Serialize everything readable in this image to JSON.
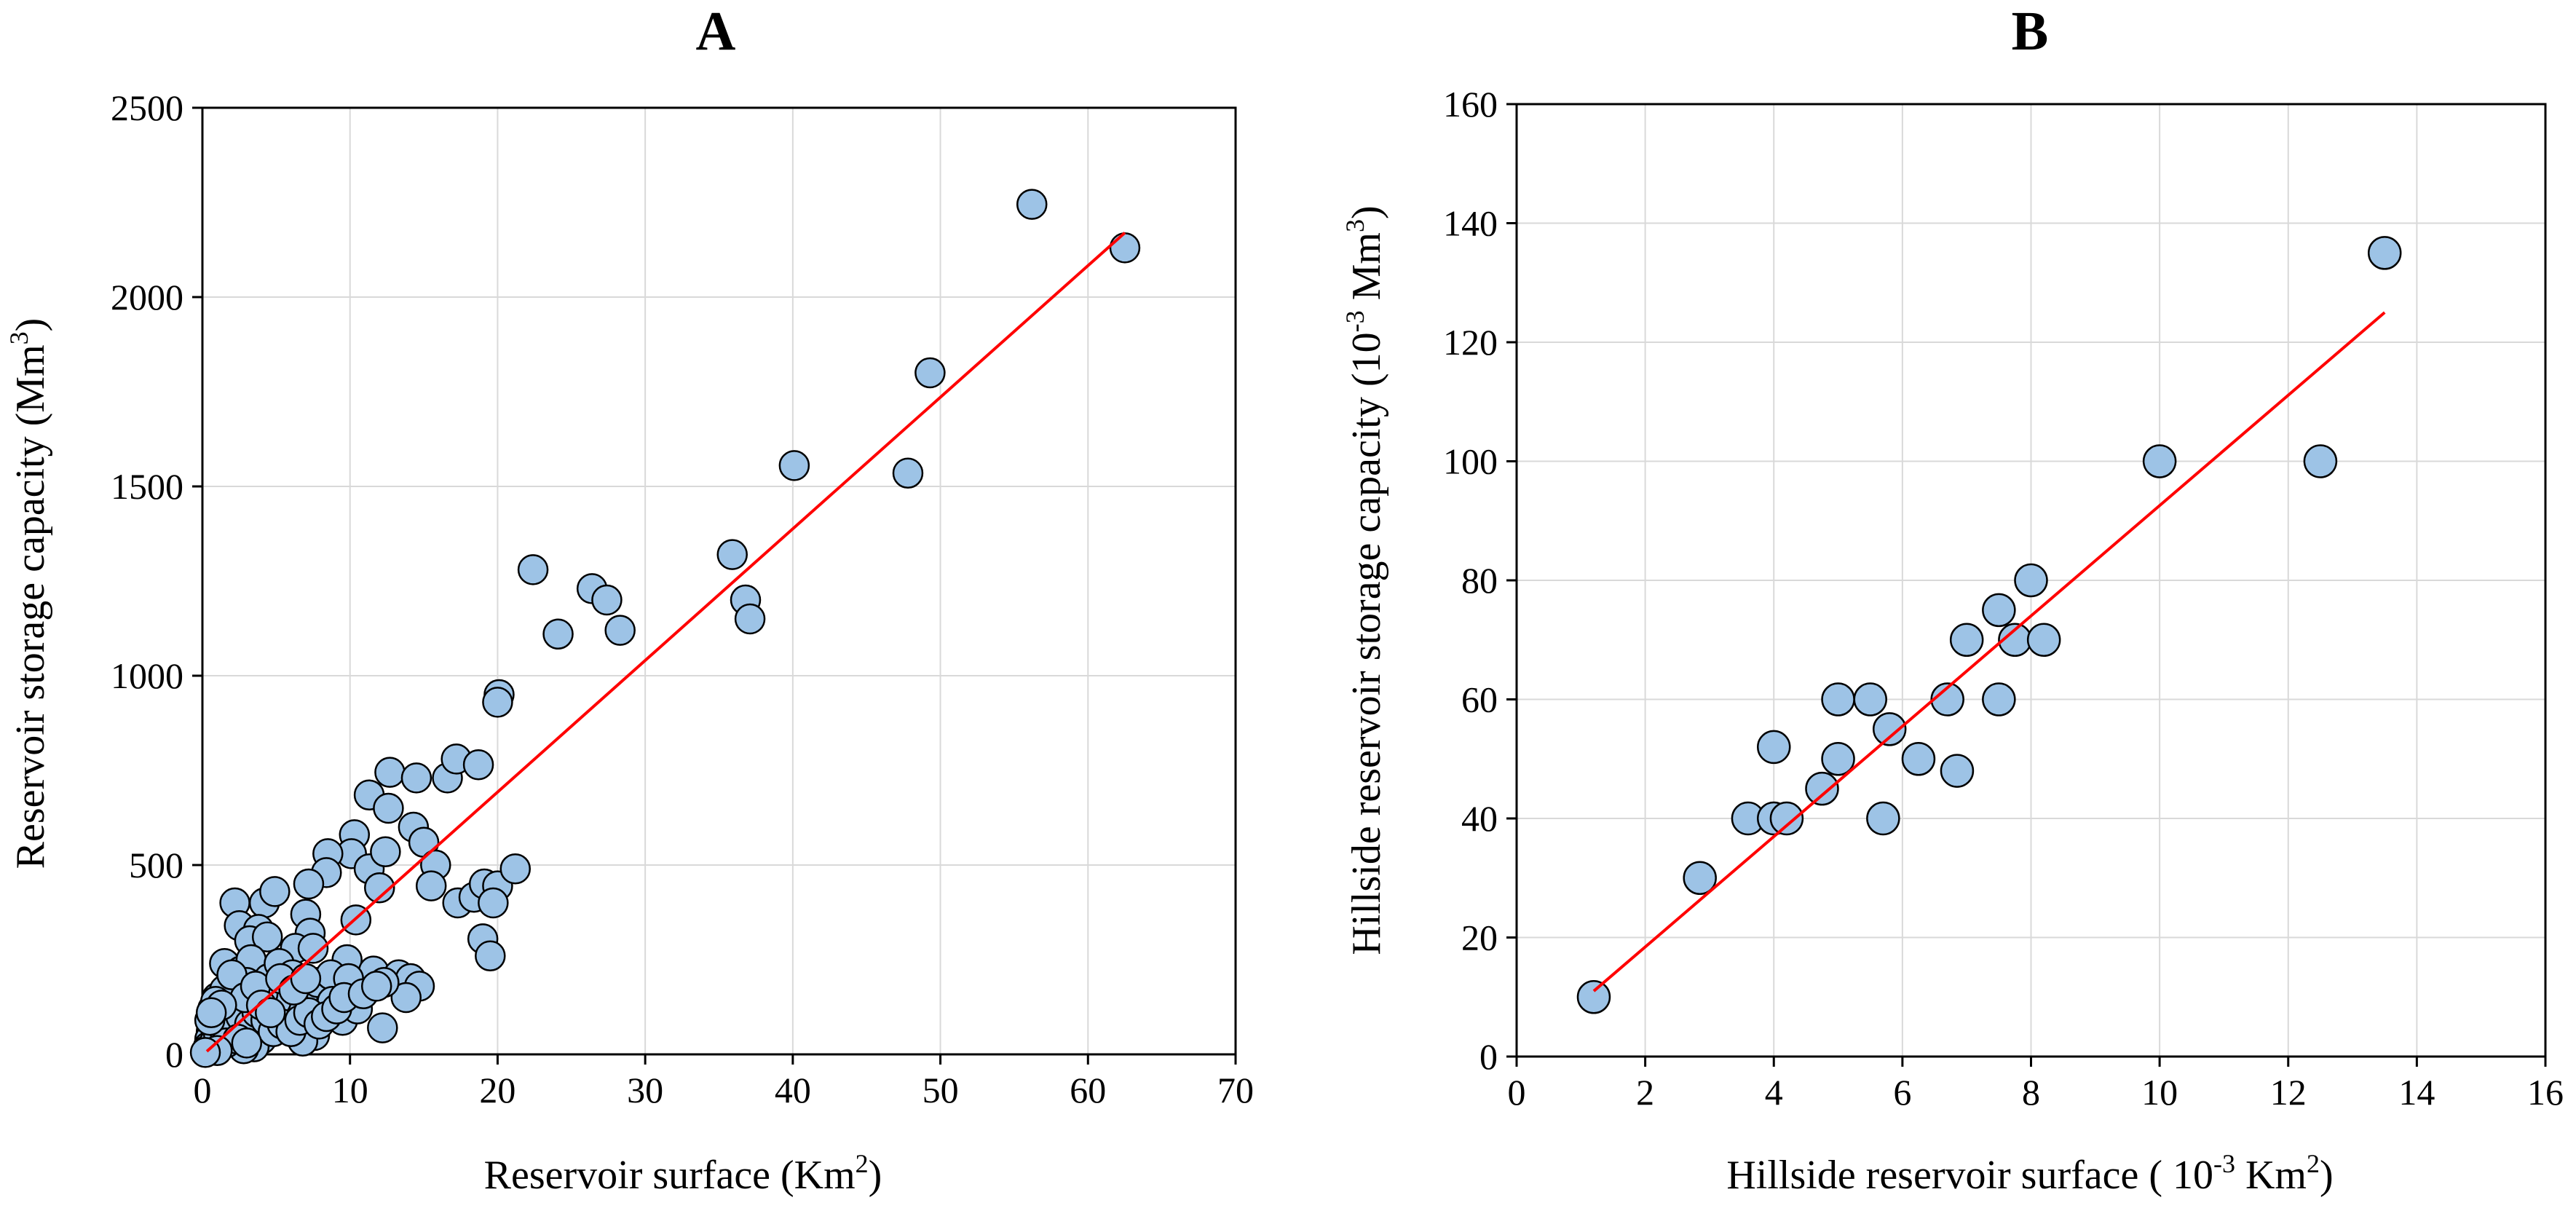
{
  "chart_data": [
    {
      "type": "scatter",
      "panel": "A",
      "title": "A",
      "xlabel": {
        "text": "Reservoir surface (Km",
        "sup": "2",
        "tail": ")"
      },
      "ylabel": {
        "text": "Reservoir storage capacity (Mm",
        "sup": "3",
        "tail": ")"
      },
      "xlim": [
        0,
        70
      ],
      "ylim": [
        0,
        2500
      ],
      "xticks": [
        0,
        10,
        20,
        30,
        40,
        50,
        60,
        70
      ],
      "yticks": [
        0,
        500,
        1000,
        1500,
        2000,
        2500
      ],
      "grid": true,
      "marker_color": "#9dc3e6",
      "marker_edge": "#000000",
      "fit_color": "#ff0000",
      "fit_line": {
        "x": [
          0.3,
          62.5
        ],
        "y": [
          8,
          2170
        ]
      },
      "points": [
        [
          56.2,
          2245
        ],
        [
          62.5,
          2130
        ],
        [
          49.3,
          1800
        ],
        [
          40.1,
          1555
        ],
        [
          47.8,
          1535
        ],
        [
          35.9,
          1320
        ],
        [
          36.8,
          1200
        ],
        [
          37.1,
          1150
        ],
        [
          22.4,
          1280
        ],
        [
          26.4,
          1230
        ],
        [
          27.4,
          1200
        ],
        [
          24.1,
          1110
        ],
        [
          28.3,
          1120
        ],
        [
          20.1,
          950
        ],
        [
          20.0,
          930
        ],
        [
          12.7,
          745
        ],
        [
          14.5,
          730
        ],
        [
          16.6,
          730
        ],
        [
          17.2,
          780
        ],
        [
          18.7,
          765
        ],
        [
          11.3,
          685
        ],
        [
          12.6,
          650
        ],
        [
          14.3,
          600
        ],
        [
          15.0,
          560
        ],
        [
          15.8,
          500
        ],
        [
          10.3,
          580
        ],
        [
          10.1,
          530
        ],
        [
          11.3,
          490
        ],
        [
          12.4,
          535
        ],
        [
          8.5,
          530
        ],
        [
          8.4,
          480
        ],
        [
          7.2,
          450
        ],
        [
          12.0,
          440
        ],
        [
          15.5,
          445
        ],
        [
          17.3,
          400
        ],
        [
          18.4,
          415
        ],
        [
          19.1,
          450
        ],
        [
          20.0,
          445
        ],
        [
          21.2,
          490
        ],
        [
          19.7,
          400
        ],
        [
          19.0,
          305
        ],
        [
          19.5,
          260
        ],
        [
          2.2,
          400
        ],
        [
          4.2,
          400
        ],
        [
          4.9,
          430
        ],
        [
          7.0,
          370
        ],
        [
          7.3,
          320
        ],
        [
          10.4,
          355
        ],
        [
          2.5,
          340
        ],
        [
          3.8,
          330
        ],
        [
          3.2,
          300
        ],
        [
          4.4,
          310
        ],
        [
          6.3,
          280
        ],
        [
          7.5,
          280
        ],
        [
          9.8,
          250
        ],
        [
          11.6,
          220
        ],
        [
          13.3,
          210
        ],
        [
          14.1,
          200
        ],
        [
          14.7,
          180
        ],
        [
          13.8,
          150
        ],
        [
          12.3,
          190
        ],
        [
          12.2,
          70
        ],
        [
          9.5,
          90
        ],
        [
          7.6,
          50
        ],
        [
          6.8,
          35
        ],
        [
          4.0,
          40
        ],
        [
          3.5,
          20
        ],
        [
          2.8,
          15
        ],
        [
          1.5,
          240
        ],
        [
          2.0,
          180
        ],
        [
          2.6,
          220
        ],
        [
          3.3,
          250
        ],
        [
          4.5,
          200
        ],
        [
          5.2,
          240
        ],
        [
          5.6,
          170
        ],
        [
          6.1,
          210
        ],
        [
          6.8,
          150
        ],
        [
          7.8,
          190
        ],
        [
          8.7,
          210
        ],
        [
          9.9,
          200
        ],
        [
          10.5,
          120
        ],
        [
          8.8,
          140
        ],
        [
          6.5,
          120
        ],
        [
          5.8,
          100
        ],
        [
          5.0,
          140
        ],
        [
          4.1,
          160
        ],
        [
          3.0,
          190
        ],
        [
          2.3,
          140
        ],
        [
          1.8,
          120
        ],
        [
          1.2,
          100
        ],
        [
          0.9,
          80
        ],
        [
          0.6,
          60
        ],
        [
          0.5,
          40
        ],
        [
          0.4,
          20
        ],
        [
          0.3,
          10
        ],
        [
          0.8,
          30
        ],
        [
          1.1,
          50
        ],
        [
          1.4,
          70
        ],
        [
          1.7,
          90
        ],
        [
          2.1,
          60
        ],
        [
          2.6,
          100
        ],
        [
          3.2,
          80
        ],
        [
          3.7,
          110
        ],
        [
          4.3,
          90
        ],
        [
          4.8,
          60
        ],
        [
          5.4,
          80
        ],
        [
          6.0,
          60
        ],
        [
          6.6,
          90
        ],
        [
          7.2,
          110
        ],
        [
          7.9,
          80
        ],
        [
          8.4,
          100
        ],
        [
          9.1,
          120
        ],
        [
          9.6,
          150
        ],
        [
          10.9,
          160
        ],
        [
          11.8,
          180
        ],
        [
          1.0,
          150
        ],
        [
          1.5,
          170
        ],
        [
          2.0,
          210
        ],
        [
          2.9,
          150
        ],
        [
          3.6,
          180
        ],
        [
          4.0,
          130
        ],
        [
          4.6,
          110
        ],
        [
          5.3,
          200
        ],
        [
          6.2,
          170
        ],
        [
          7.0,
          200
        ],
        [
          0.7,
          120
        ],
        [
          0.9,
          140
        ],
        [
          1.3,
          130
        ],
        [
          1.6,
          30
        ],
        [
          2.4,
          40
        ],
        [
          3.0,
          30
        ],
        [
          0.5,
          90
        ],
        [
          0.6,
          110
        ],
        [
          1.0,
          10
        ],
        [
          0.2,
          5
        ]
      ]
    },
    {
      "type": "scatter",
      "panel": "B",
      "title": "B",
      "xlabel": {
        "text": "Hillside reservoir surface ( 10",
        "sup": "-3",
        "tail": " Km",
        "sup2": "2",
        "tail2": ")"
      },
      "ylabel": {
        "text": "Hillside reservoir storage capacity (10",
        "sup": "-3",
        "tail": " Mm",
        "sup2": "3",
        "tail2": ")"
      },
      "xlim": [
        0,
        16
      ],
      "ylim": [
        0,
        160
      ],
      "xticks": [
        0,
        2,
        4,
        6,
        8,
        10,
        12,
        14,
        16
      ],
      "yticks": [
        0,
        20,
        40,
        60,
        80,
        100,
        120,
        140,
        160
      ],
      "grid": true,
      "marker_color": "#9dc3e6",
      "marker_edge": "#000000",
      "fit_color": "#ff0000",
      "fit_line": {
        "x": [
          1.2,
          13.5
        ],
        "y": [
          11,
          125
        ]
      },
      "points": [
        [
          1.2,
          10
        ],
        [
          2.85,
          30
        ],
        [
          3.6,
          40
        ],
        [
          4.0,
          40
        ],
        [
          4.2,
          40
        ],
        [
          4.0,
          52
        ],
        [
          4.75,
          45
        ],
        [
          5.0,
          50
        ],
        [
          5.0,
          60
        ],
        [
          5.5,
          60
        ],
        [
          5.7,
          40
        ],
        [
          5.8,
          55
        ],
        [
          6.25,
          50
        ],
        [
          6.7,
          60
        ],
        [
          6.85,
          48
        ],
        [
          7.0,
          70
        ],
        [
          7.5,
          75
        ],
        [
          7.5,
          60
        ],
        [
          7.75,
          70
        ],
        [
          8.0,
          80
        ],
        [
          8.2,
          70
        ],
        [
          10.0,
          100
        ],
        [
          12.5,
          100
        ],
        [
          13.5,
          135
        ]
      ]
    }
  ]
}
